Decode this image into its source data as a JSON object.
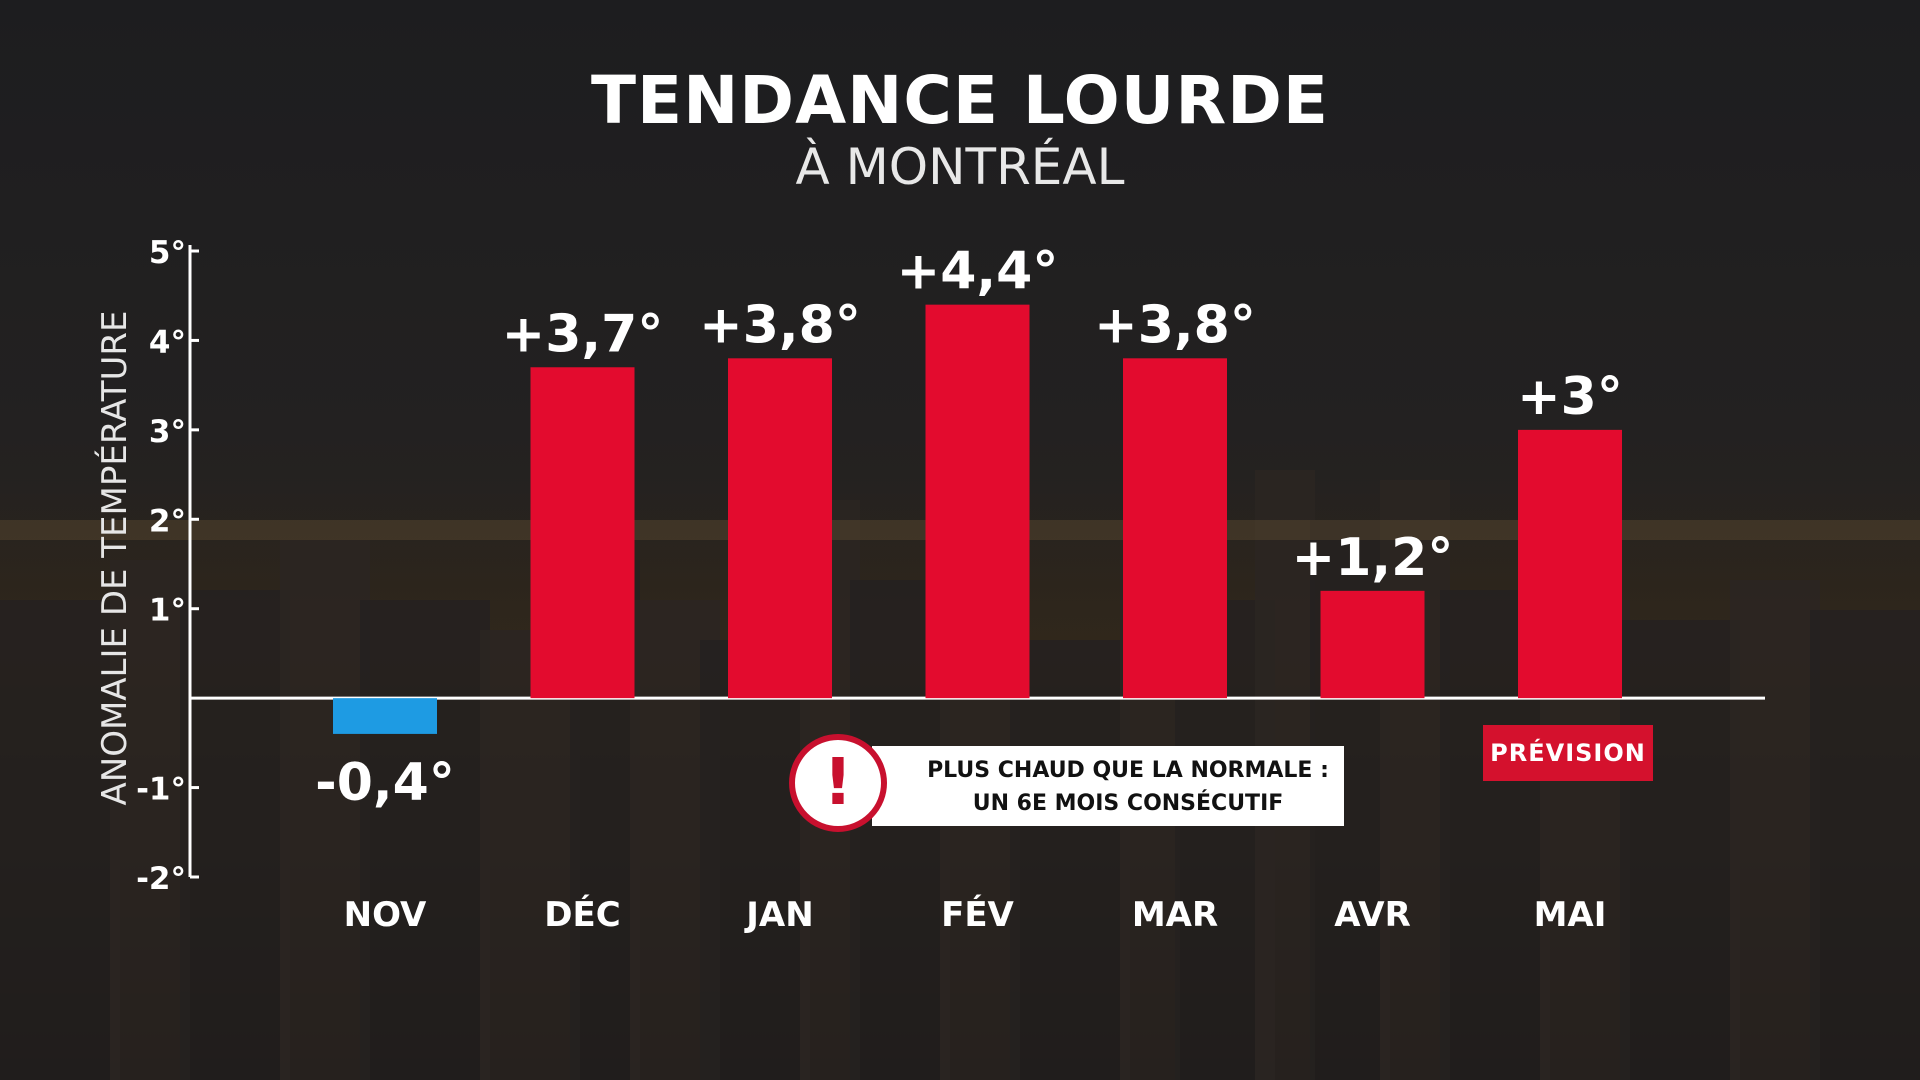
{
  "title": "TENDANCE LOURDE",
  "subtitle": "À MONTRÉAL",
  "alert": {
    "text": "PLUS CHAUD QUE LA NORMALE :\nUN 6E MOIS CONSÉCUTIF",
    "icon": "exclamation-icon",
    "icon_glyph": "!"
  },
  "forecast_badge": "PRÉVISION",
  "colors": {
    "positive_bar": "#e30b2e",
    "negative_bar": "#1e9be3",
    "badge": "#d4112d"
  },
  "chart_data": {
    "type": "bar",
    "title": "TENDANCE LOURDE",
    "subtitle": "À MONTRÉAL",
    "xlabel": "",
    "ylabel": "ANOMALIE DE TEMPÉRATURE",
    "ylim": [
      -2,
      5
    ],
    "yticks": [
      "5°",
      "4°",
      "3°",
      "2°",
      "1°",
      "-1°",
      "-2°"
    ],
    "ytick_values": [
      5,
      4,
      3,
      2,
      1,
      -1,
      -2
    ],
    "categories": [
      "NOV",
      "DÉC",
      "JAN",
      "FÉV",
      "MAR",
      "AVR",
      "MAI"
    ],
    "values": [
      -0.4,
      3.7,
      3.8,
      4.4,
      3.8,
      1.2,
      3.0
    ],
    "value_labels": [
      "-0,4°",
      "+3,7°",
      "+3,8°",
      "+4,4°",
      "+3,8°",
      "+1,2°",
      "+3°"
    ],
    "grid": false,
    "legend": "none"
  }
}
